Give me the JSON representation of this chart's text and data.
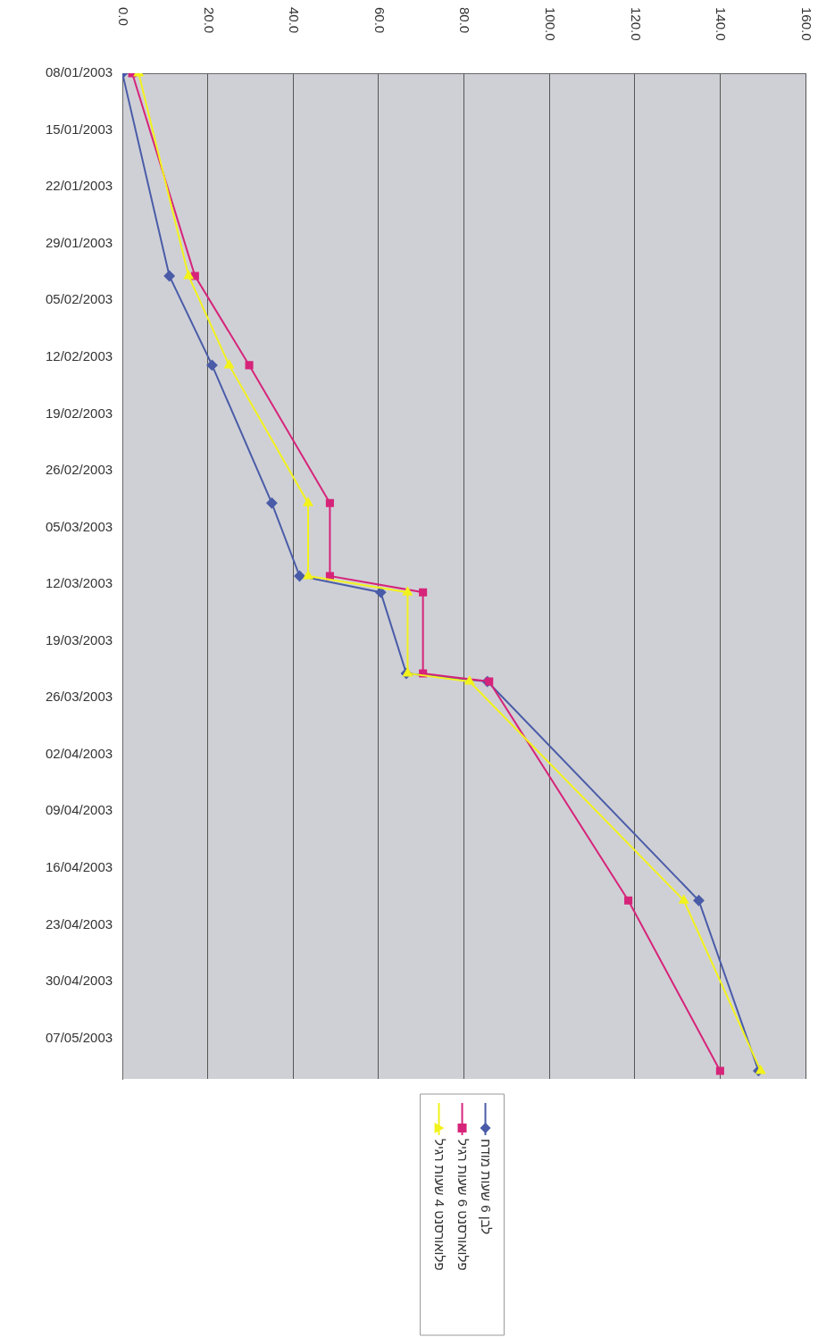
{
  "chart_data": {
    "type": "line",
    "x": [
      "2003-01-08",
      "2003-02-02",
      "2003-02-13",
      "2003-03-02",
      "2003-03-11",
      "2003-03-13",
      "2003-03-23",
      "2003-03-24",
      "2003-04-20",
      "2003-05-11"
    ],
    "series": [
      {
        "name": "לבן 6 שעות מודח",
        "color": "#4a5ca8",
        "marker": "diamond",
        "values": [
          0.0,
          11,
          21,
          35,
          41.5,
          60.5,
          66.5,
          85.5,
          135,
          149
        ]
      },
      {
        "name": "פלואורסנט 6 שעות רגיל",
        "color": "#d6247a",
        "marker": "square",
        "values": [
          2.3,
          17,
          29.7,
          48.6,
          48.6,
          70.4,
          70.4,
          85.9,
          118.5,
          140
        ]
      },
      {
        "name": "פלואורסנט 4 שעות רגיל",
        "color": "#f2f21c",
        "marker": "triangle",
        "values": [
          3.8,
          15.5,
          25,
          43.5,
          43.5,
          66.8,
          66.8,
          81.3,
          131.5,
          149.5
        ]
      }
    ],
    "orientation": "horizontal",
    "xlim": [
      0,
      160
    ],
    "xticks": [
      {
        "value": 0,
        "label": "0.0"
      },
      {
        "value": 20,
        "label": "20.0"
      },
      {
        "value": 40,
        "label": "40.0"
      },
      {
        "value": 60,
        "label": "60.0"
      },
      {
        "value": 80,
        "label": "80.0"
      },
      {
        "value": 100,
        "label": "100.0"
      },
      {
        "value": 120,
        "label": "120.0"
      },
      {
        "value": 140,
        "label": "140.0"
      },
      {
        "value": 160,
        "label": "160.0"
      }
    ],
    "ylim": [
      "2003-05-12",
      "2003-01-08"
    ],
    "yticks": [
      {
        "value": "2003-01-08",
        "label": "08/01/2003"
      },
      {
        "value": "2003-01-15",
        "label": "15/01/2003"
      },
      {
        "value": "2003-01-22",
        "label": "22/01/2003"
      },
      {
        "value": "2003-01-29",
        "label": "29/01/2003"
      },
      {
        "value": "2003-02-05",
        "label": "05/02/2003"
      },
      {
        "value": "2003-02-12",
        "label": "12/02/2003"
      },
      {
        "value": "2003-02-19",
        "label": "19/02/2003"
      },
      {
        "value": "2003-02-26",
        "label": "26/02/2003"
      },
      {
        "value": "2003-03-05",
        "label": "05/03/2003"
      },
      {
        "value": "2003-03-12",
        "label": "12/03/2003"
      },
      {
        "value": "2003-03-19",
        "label": "19/03/2003"
      },
      {
        "value": "2003-03-26",
        "label": "26/03/2003"
      },
      {
        "value": "2003-04-02",
        "label": "02/04/2003"
      },
      {
        "value": "2003-04-09",
        "label": "09/04/2003"
      },
      {
        "value": "2003-04-16",
        "label": "16/04/2003"
      },
      {
        "value": "2003-04-23",
        "label": "23/04/2003"
      },
      {
        "value": "2003-04-30",
        "label": "30/04/2003"
      },
      {
        "value": "2003-05-07",
        "label": "07/05/2003"
      }
    ],
    "grid": "x",
    "legend": "bottom"
  }
}
